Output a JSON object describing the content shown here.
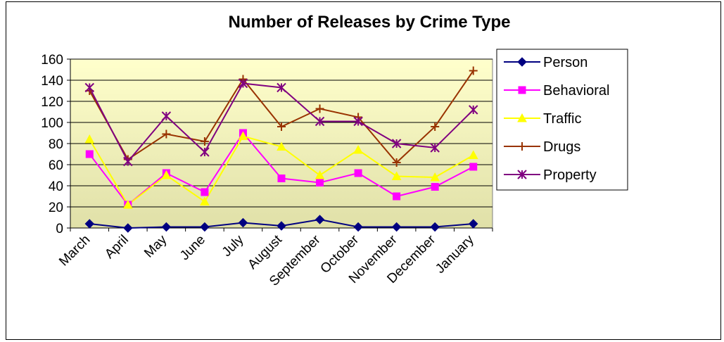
{
  "chart_data": {
    "type": "line",
    "title": "Number of Releases by Crime Type",
    "xlabel": "",
    "ylabel": "",
    "ylim": [
      0,
      160
    ],
    "yticks": [
      0,
      20,
      40,
      60,
      80,
      100,
      120,
      140,
      160
    ],
    "categories": [
      "March",
      "April",
      "May",
      "June",
      "July",
      "August",
      "September",
      "October",
      "November",
      "December",
      "January"
    ],
    "grid": true,
    "legend_position": "right",
    "series": [
      {
        "name": "Person",
        "color": "#000080",
        "marker": "diamond",
        "values": [
          4,
          0,
          1,
          1,
          5,
          2,
          8,
          1,
          1,
          1,
          4
        ]
      },
      {
        "name": "Behavioral",
        "color": "#FF00FF",
        "marker": "square",
        "values": [
          70,
          22,
          52,
          34,
          90,
          47,
          43,
          52,
          30,
          39,
          58
        ]
      },
      {
        "name": "Traffic",
        "color": "#FFFF00",
        "marker": "triangle",
        "values": [
          84,
          22,
          50,
          25,
          87,
          77,
          50,
          74,
          49,
          48,
          69
        ]
      },
      {
        "name": "Drugs",
        "color": "#993300",
        "marker": "plus",
        "values": [
          130,
          65,
          89,
          82,
          141,
          96,
          113,
          105,
          62,
          96,
          149
        ]
      },
      {
        "name": "Property",
        "color": "#800080",
        "marker": "star",
        "values": [
          133,
          63,
          106,
          72,
          137,
          133,
          101,
          101,
          80,
          76,
          112
        ]
      }
    ]
  }
}
